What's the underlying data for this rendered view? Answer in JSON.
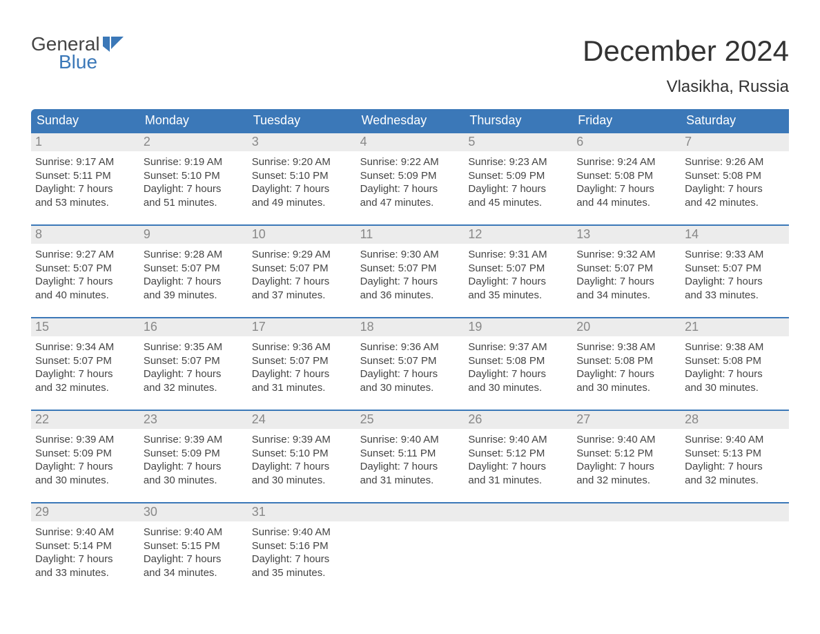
{
  "logo": {
    "line1": "General",
    "line2": "Blue",
    "color": "#3b78b8",
    "text_color": "#444444"
  },
  "title": "December 2024",
  "location": "Vlasikha, Russia",
  "calendar": {
    "type": "table",
    "header_bg": "#3b78b8",
    "header_fg": "#ffffff",
    "row_divider_color": "#3b78b8",
    "daynum_bg": "#ececec",
    "daynum_fg": "#888888",
    "cell_text_color": "#444444",
    "background_color": "#ffffff",
    "title_fontsize": 42,
    "location_fontsize": 24,
    "header_fontsize": 18,
    "daynum_fontsize": 18,
    "cell_fontsize": 15,
    "columns": [
      "Sunday",
      "Monday",
      "Tuesday",
      "Wednesday",
      "Thursday",
      "Friday",
      "Saturday"
    ],
    "weeks": [
      [
        {
          "n": "1",
          "sunrise": "9:17 AM",
          "sunset": "5:11 PM",
          "dh": "7",
          "dm": "53"
        },
        {
          "n": "2",
          "sunrise": "9:19 AM",
          "sunset": "5:10 PM",
          "dh": "7",
          "dm": "51"
        },
        {
          "n": "3",
          "sunrise": "9:20 AM",
          "sunset": "5:10 PM",
          "dh": "7",
          "dm": "49"
        },
        {
          "n": "4",
          "sunrise": "9:22 AM",
          "sunset": "5:09 PM",
          "dh": "7",
          "dm": "47"
        },
        {
          "n": "5",
          "sunrise": "9:23 AM",
          "sunset": "5:09 PM",
          "dh": "7",
          "dm": "45"
        },
        {
          "n": "6",
          "sunrise": "9:24 AM",
          "sunset": "5:08 PM",
          "dh": "7",
          "dm": "44"
        },
        {
          "n": "7",
          "sunrise": "9:26 AM",
          "sunset": "5:08 PM",
          "dh": "7",
          "dm": "42"
        }
      ],
      [
        {
          "n": "8",
          "sunrise": "9:27 AM",
          "sunset": "5:07 PM",
          "dh": "7",
          "dm": "40"
        },
        {
          "n": "9",
          "sunrise": "9:28 AM",
          "sunset": "5:07 PM",
          "dh": "7",
          "dm": "39"
        },
        {
          "n": "10",
          "sunrise": "9:29 AM",
          "sunset": "5:07 PM",
          "dh": "7",
          "dm": "37"
        },
        {
          "n": "11",
          "sunrise": "9:30 AM",
          "sunset": "5:07 PM",
          "dh": "7",
          "dm": "36"
        },
        {
          "n": "12",
          "sunrise": "9:31 AM",
          "sunset": "5:07 PM",
          "dh": "7",
          "dm": "35"
        },
        {
          "n": "13",
          "sunrise": "9:32 AM",
          "sunset": "5:07 PM",
          "dh": "7",
          "dm": "34"
        },
        {
          "n": "14",
          "sunrise": "9:33 AM",
          "sunset": "5:07 PM",
          "dh": "7",
          "dm": "33"
        }
      ],
      [
        {
          "n": "15",
          "sunrise": "9:34 AM",
          "sunset": "5:07 PM",
          "dh": "7",
          "dm": "32"
        },
        {
          "n": "16",
          "sunrise": "9:35 AM",
          "sunset": "5:07 PM",
          "dh": "7",
          "dm": "32"
        },
        {
          "n": "17",
          "sunrise": "9:36 AM",
          "sunset": "5:07 PM",
          "dh": "7",
          "dm": "31"
        },
        {
          "n": "18",
          "sunrise": "9:36 AM",
          "sunset": "5:07 PM",
          "dh": "7",
          "dm": "30"
        },
        {
          "n": "19",
          "sunrise": "9:37 AM",
          "sunset": "5:08 PM",
          "dh": "7",
          "dm": "30"
        },
        {
          "n": "20",
          "sunrise": "9:38 AM",
          "sunset": "5:08 PM",
          "dh": "7",
          "dm": "30"
        },
        {
          "n": "21",
          "sunrise": "9:38 AM",
          "sunset": "5:08 PM",
          "dh": "7",
          "dm": "30"
        }
      ],
      [
        {
          "n": "22",
          "sunrise": "9:39 AM",
          "sunset": "5:09 PM",
          "dh": "7",
          "dm": "30"
        },
        {
          "n": "23",
          "sunrise": "9:39 AM",
          "sunset": "5:09 PM",
          "dh": "7",
          "dm": "30"
        },
        {
          "n": "24",
          "sunrise": "9:39 AM",
          "sunset": "5:10 PM",
          "dh": "7",
          "dm": "30"
        },
        {
          "n": "25",
          "sunrise": "9:40 AM",
          "sunset": "5:11 PM",
          "dh": "7",
          "dm": "31"
        },
        {
          "n": "26",
          "sunrise": "9:40 AM",
          "sunset": "5:12 PM",
          "dh": "7",
          "dm": "31"
        },
        {
          "n": "27",
          "sunrise": "9:40 AM",
          "sunset": "5:12 PM",
          "dh": "7",
          "dm": "32"
        },
        {
          "n": "28",
          "sunrise": "9:40 AM",
          "sunset": "5:13 PM",
          "dh": "7",
          "dm": "32"
        }
      ],
      [
        {
          "n": "29",
          "sunrise": "9:40 AM",
          "sunset": "5:14 PM",
          "dh": "7",
          "dm": "33"
        },
        {
          "n": "30",
          "sunrise": "9:40 AM",
          "sunset": "5:15 PM",
          "dh": "7",
          "dm": "34"
        },
        {
          "n": "31",
          "sunrise": "9:40 AM",
          "sunset": "5:16 PM",
          "dh": "7",
          "dm": "35"
        },
        null,
        null,
        null,
        null
      ]
    ],
    "labels": {
      "sunrise_prefix": "Sunrise: ",
      "sunset_prefix": "Sunset: ",
      "daylight_prefix": "Daylight: ",
      "hours_word": " hours",
      "and_word": "and ",
      "minutes_word": " minutes."
    }
  }
}
